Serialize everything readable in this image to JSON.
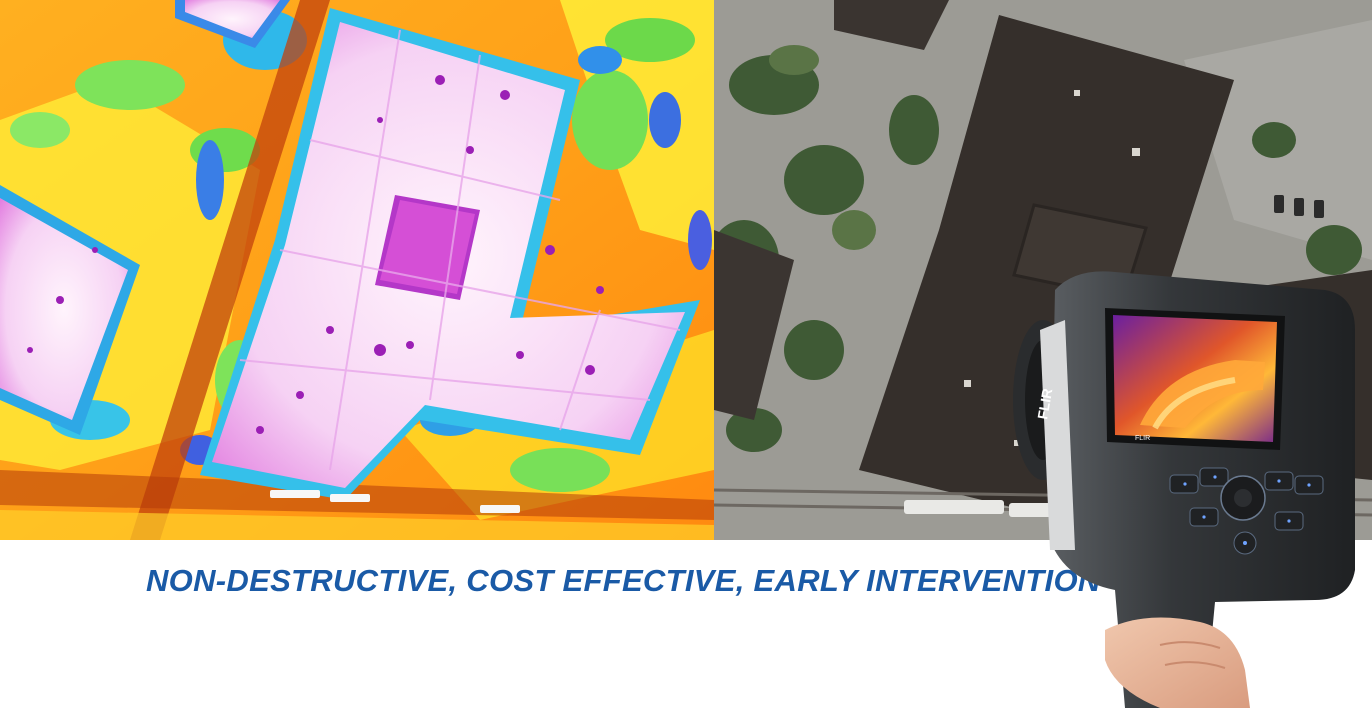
{
  "tagline": "NON-DESTRUCTIVE, COST EFFECTIVE, EARLY INTERVENTION",
  "camera": {
    "brand_label": "FLIR",
    "screen_brand_label": "FLIR",
    "body_color": "#2e3134"
  },
  "palette": {
    "tagline_color": "#1a5aa6",
    "thermal_hot": "#fbe7fb",
    "thermal_warm": "#ff9a1f",
    "thermal_cool": "#33c8e8",
    "aerial_roof": "#35302c"
  }
}
